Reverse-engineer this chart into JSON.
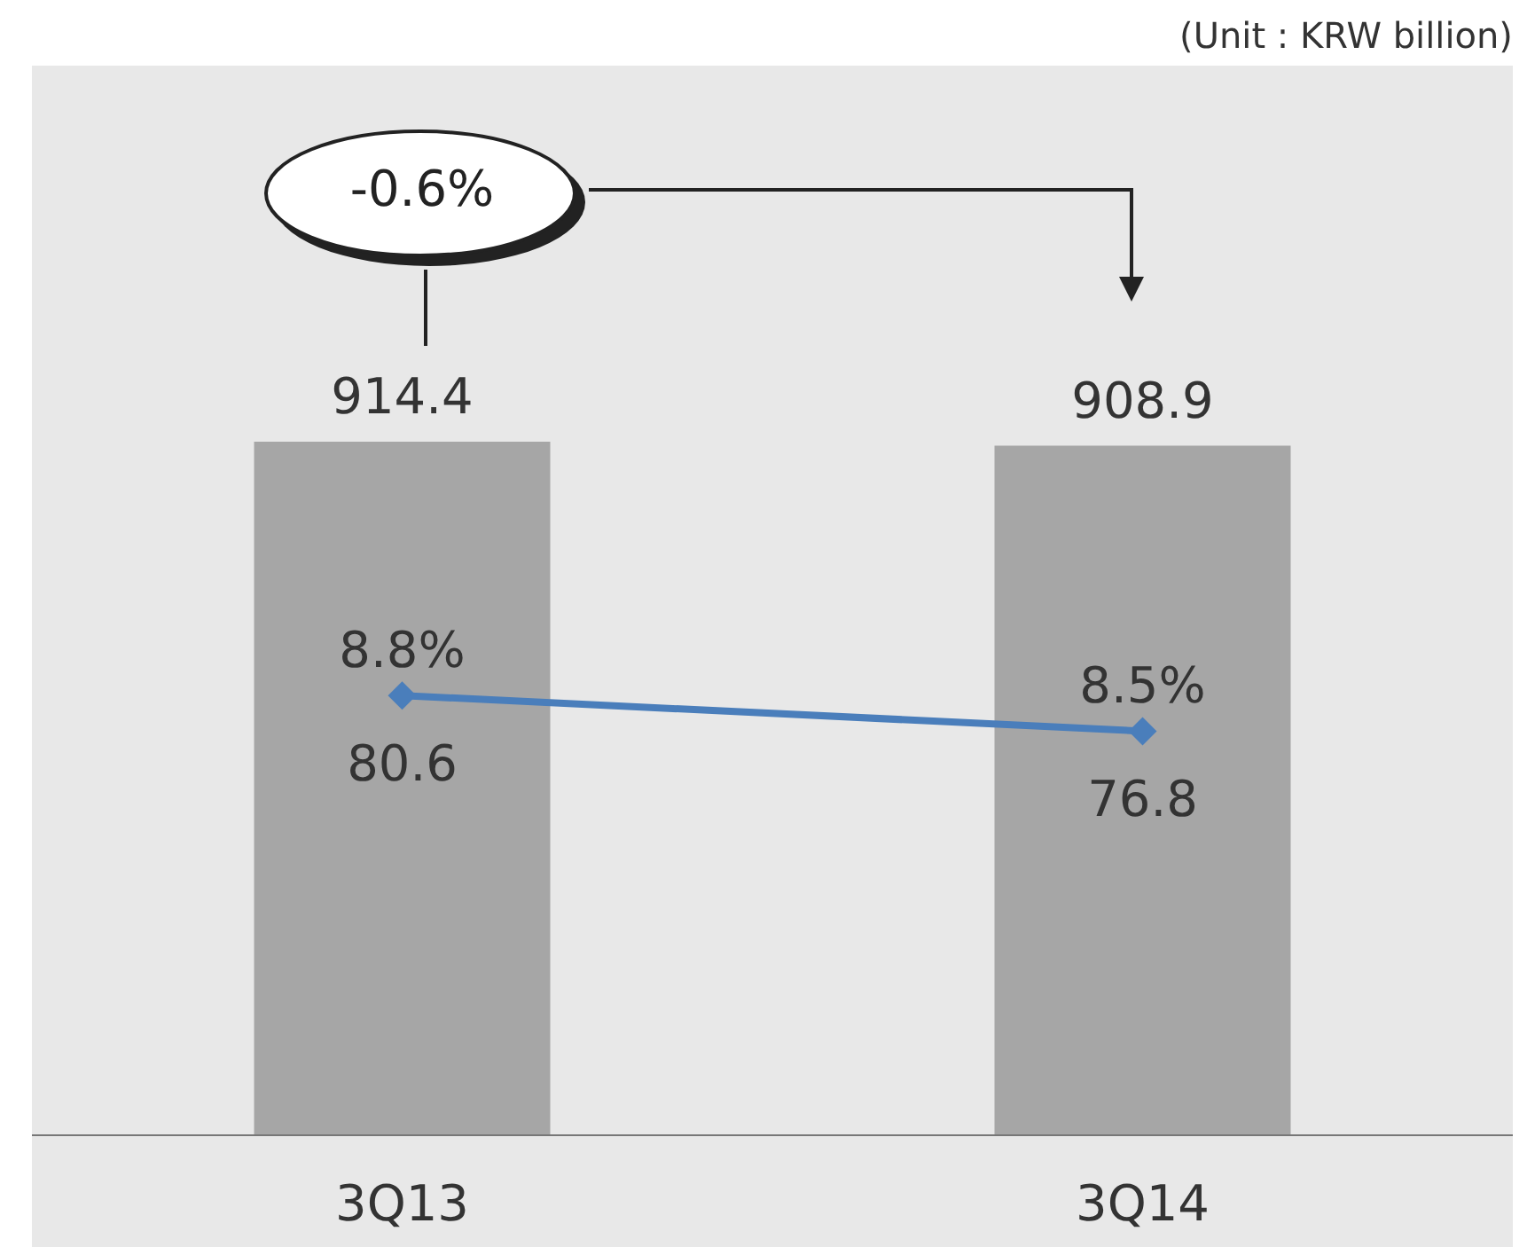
{
  "chart_data": {
    "type": "bar",
    "categories": [
      "3Q13",
      "3Q14"
    ],
    "series": [
      {
        "color": "#a6a6a6",
        "values": [
          914.4,
          908.9
        ],
        "value_labels": [
          "914.4",
          "908.9"
        ]
      },
      {
        "type": "line",
        "axis": "y2",
        "color": "#4a7ebb",
        "values": [
          8.8,
          8.5
        ],
        "value_labels": [
          "8.8%",
          "8.5%"
        ]
      }
    ],
    "ylim": [
      0,
      1410
    ],
    "y2lim": [
      5.1,
      14.1
    ],
    "marker": "diamond",
    "tick_labels": "x",
    "grid": false,
    "legend": false,
    "annotations": [
      "-0.6%",
      "(Unit : KRW billion)",
      "80.6",
      "76.8"
    ]
  }
}
